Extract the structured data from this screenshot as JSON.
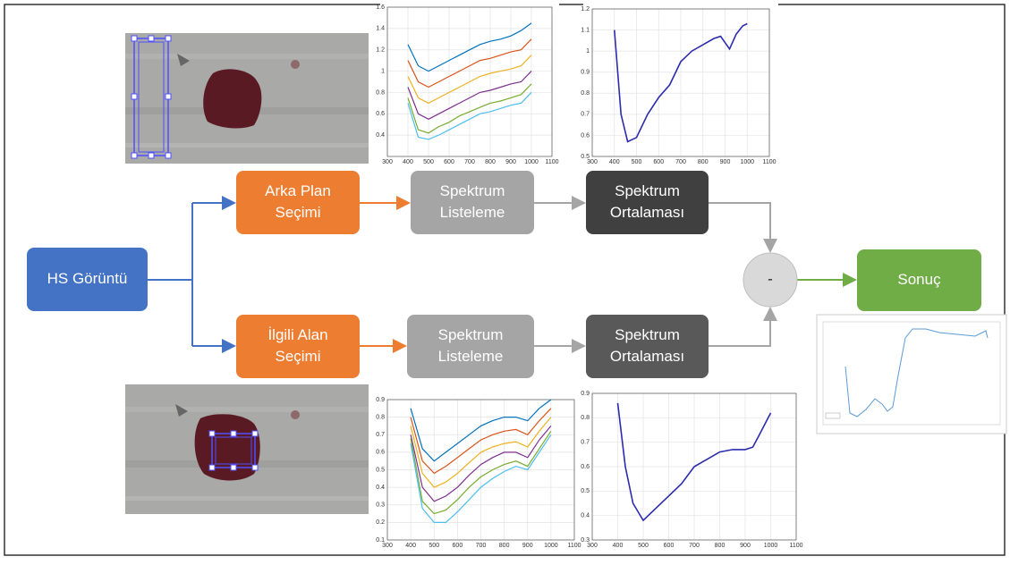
{
  "nodes": [
    {
      "lines": [
        "HS Görüntü"
      ]
    },
    {
      "lines": [
        "Arka Plan",
        "Seçimi"
      ]
    },
    {
      "lines": [
        "Spektrum",
        "Listeleme"
      ]
    },
    {
      "lines": [
        "Spektrum",
        "Ortalaması"
      ]
    },
    {
      "lines": [
        "İlgili Alan",
        "Seçimi"
      ]
    },
    {
      "lines": [
        "Spektrum",
        "Listeleme"
      ]
    },
    {
      "lines": [
        "Spektrum",
        "Ortalaması"
      ]
    },
    {
      "lines": [
        "-"
      ]
    },
    {
      "lines": [
        "Sonuç"
      ]
    }
  ],
  "charts": [
    {
      "type": "line",
      "xlim": [
        300,
        1100
      ],
      "ylim": [
        0.2,
        1.6
      ],
      "xticks": [
        300,
        400,
        500,
        600,
        700,
        800,
        900,
        1000,
        1100
      ],
      "yticks": [
        0.4,
        0.6,
        0.8,
        1,
        1.2,
        1.4,
        1.6
      ],
      "grid": true,
      "x": [
        400,
        450,
        500,
        550,
        600,
        650,
        700,
        750,
        800,
        850,
        900,
        950,
        1000
      ],
      "series": [
        {
          "color": "#0072bd",
          "values": [
            1.25,
            1.05,
            1.0,
            1.05,
            1.1,
            1.15,
            1.2,
            1.25,
            1.28,
            1.3,
            1.33,
            1.38,
            1.45
          ]
        },
        {
          "color": "#d95319",
          "values": [
            1.1,
            0.9,
            0.85,
            0.9,
            0.95,
            1.0,
            1.05,
            1.1,
            1.12,
            1.15,
            1.18,
            1.2,
            1.3
          ]
        },
        {
          "color": "#edb120",
          "values": [
            0.95,
            0.75,
            0.7,
            0.75,
            0.8,
            0.85,
            0.9,
            0.95,
            0.98,
            1.0,
            1.02,
            1.05,
            1.15
          ]
        },
        {
          "color": "#7e2f8e",
          "values": [
            0.85,
            0.6,
            0.55,
            0.6,
            0.65,
            0.7,
            0.75,
            0.8,
            0.82,
            0.85,
            0.88,
            0.9,
            1.0
          ]
        },
        {
          "color": "#77ac30",
          "values": [
            0.75,
            0.45,
            0.42,
            0.48,
            0.52,
            0.58,
            0.62,
            0.66,
            0.7,
            0.72,
            0.75,
            0.78,
            0.88
          ]
        },
        {
          "color": "#4dbeee",
          "values": [
            0.7,
            0.38,
            0.36,
            0.4,
            0.45,
            0.5,
            0.55,
            0.6,
            0.62,
            0.65,
            0.68,
            0.7,
            0.8
          ]
        }
      ]
    },
    {
      "type": "line",
      "xlim": [
        300,
        1100
      ],
      "ylim": [
        0.5,
        1.2
      ],
      "xticks": [
        300,
        400,
        500,
        600,
        700,
        800,
        900,
        1000,
        1100
      ],
      "yticks": [
        0.5,
        0.6,
        0.7,
        0.8,
        0.9,
        1,
        1.1,
        1.2
      ],
      "grid": true,
      "x": [
        400,
        430,
        460,
        500,
        550,
        600,
        650,
        700,
        750,
        800,
        850,
        880,
        900,
        920,
        950,
        980,
        1000
      ],
      "series": [
        {
          "color": "#2b2bb0",
          "values": [
            1.1,
            0.7,
            0.57,
            0.59,
            0.7,
            0.78,
            0.84,
            0.95,
            1.0,
            1.03,
            1.06,
            1.07,
            1.04,
            1.01,
            1.08,
            1.12,
            1.13
          ]
        }
      ]
    },
    {
      "type": "line",
      "xlim": [
        300,
        1100
      ],
      "ylim": [
        0.1,
        0.9
      ],
      "xticks": [
        300,
        400,
        500,
        600,
        700,
        800,
        900,
        1000,
        1100
      ],
      "yticks": [
        0.1,
        0.2,
        0.3,
        0.4,
        0.5,
        0.6,
        0.7,
        0.8,
        0.9
      ],
      "grid": true,
      "x": [
        400,
        450,
        500,
        550,
        600,
        650,
        700,
        750,
        800,
        850,
        900,
        950,
        1000
      ],
      "series": [
        {
          "color": "#0072bd",
          "values": [
            0.85,
            0.62,
            0.55,
            0.6,
            0.65,
            0.7,
            0.75,
            0.78,
            0.8,
            0.8,
            0.78,
            0.85,
            0.9
          ]
        },
        {
          "color": "#d95319",
          "values": [
            0.8,
            0.55,
            0.48,
            0.52,
            0.57,
            0.62,
            0.67,
            0.7,
            0.72,
            0.73,
            0.7,
            0.78,
            0.85
          ]
        },
        {
          "color": "#edb120",
          "values": [
            0.75,
            0.48,
            0.4,
            0.43,
            0.48,
            0.54,
            0.6,
            0.63,
            0.65,
            0.66,
            0.63,
            0.72,
            0.8
          ]
        },
        {
          "color": "#7e2f8e",
          "values": [
            0.7,
            0.4,
            0.32,
            0.35,
            0.4,
            0.47,
            0.53,
            0.57,
            0.6,
            0.6,
            0.57,
            0.67,
            0.75
          ]
        },
        {
          "color": "#77ac30",
          "values": [
            0.68,
            0.32,
            0.25,
            0.27,
            0.33,
            0.4,
            0.46,
            0.5,
            0.53,
            0.55,
            0.52,
            0.62,
            0.72
          ]
        },
        {
          "color": "#4dbeee",
          "values": [
            0.65,
            0.28,
            0.2,
            0.2,
            0.26,
            0.33,
            0.4,
            0.45,
            0.49,
            0.52,
            0.5,
            0.6,
            0.7
          ]
        }
      ]
    },
    {
      "type": "line",
      "xlim": [
        300,
        1100
      ],
      "ylim": [
        0.3,
        0.9
      ],
      "xticks": [
        300,
        400,
        500,
        600,
        700,
        800,
        900,
        1000,
        1100
      ],
      "yticks": [
        0.3,
        0.4,
        0.5,
        0.6,
        0.7,
        0.8,
        0.9
      ],
      "grid": true,
      "x": [
        400,
        430,
        460,
        500,
        530,
        600,
        650,
        700,
        750,
        800,
        850,
        900,
        930,
        950,
        1000
      ],
      "series": [
        {
          "color": "#2b2bb0",
          "values": [
            0.86,
            0.6,
            0.45,
            0.38,
            0.41,
            0.48,
            0.53,
            0.6,
            0.63,
            0.66,
            0.67,
            0.67,
            0.68,
            0.72,
            0.82
          ]
        }
      ]
    }
  ]
}
